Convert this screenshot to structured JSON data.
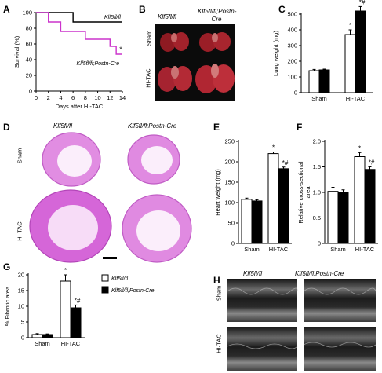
{
  "panels": {
    "A": "A",
    "B": "B",
    "C": "C",
    "D": "D",
    "E": "E",
    "F": "F",
    "G": "G",
    "H": "H"
  },
  "groups": {
    "ctrl": "Klf5fl/fl",
    "ko": "Klf5fl/fl;Postn-Cre",
    "sham": "Sham",
    "tac": "HI-TAC"
  },
  "marks": {
    "star": "*",
    "star_hash": "*#"
  },
  "colors": {
    "ctrl_fill": "#ffffff",
    "ko_fill": "#000000",
    "ctrl_line": "#000000",
    "ko_line": "#cc33cc",
    "heart_pink": "#d566d8",
    "lung_red": "#b3202a"
  },
  "chart_data": [
    {
      "panel": "A",
      "type": "line",
      "xlabel": "Days after HI-TAC",
      "ylabel": "Survival (%)",
      "xlim": [
        0,
        14
      ],
      "ylim": [
        0,
        100
      ],
      "xticks": [
        "0",
        "2",
        "4",
        "6",
        "8",
        "10",
        "12",
        "14"
      ],
      "yticks": [
        "0",
        "20",
        "40",
        "60",
        "80",
        "100"
      ],
      "series": [
        {
          "name": "Klf5fl/fl",
          "x": [
            0,
            6,
            6,
            14
          ],
          "y": [
            100,
            100,
            88,
            88
          ]
        },
        {
          "name": "Klf5fl/fl;Postn-Cre",
          "x": [
            0,
            2,
            2,
            4,
            4,
            8,
            8,
            12,
            12,
            13,
            13,
            14
          ],
          "y": [
            100,
            100,
            88,
            88,
            76,
            76,
            66,
            66,
            57,
            57,
            47,
            47
          ]
        }
      ],
      "annotation": "*"
    },
    {
      "panel": "C",
      "type": "bar",
      "categories": [
        "Sham",
        "HI-TAC"
      ],
      "ylabel": "Lung weight (mg)",
      "ylim": [
        0,
        500
      ],
      "yticks": [
        "0",
        "100",
        "200",
        "300",
        "400",
        "500"
      ],
      "series": [
        {
          "name": "Klf5fl/fl",
          "values": [
            140,
            370
          ],
          "errors": [
            8,
            30
          ]
        },
        {
          "name": "Klf5fl/fl;Postn-Cre",
          "values": [
            145,
            520
          ],
          "errors": [
            5,
            28
          ]
        }
      ],
      "annotations": [
        "*",
        "*#"
      ]
    },
    {
      "panel": "E",
      "type": "bar",
      "categories": [
        "Sham",
        "HI-TAC"
      ],
      "ylabel": "Heart weight (mg)",
      "ylim": [
        0,
        250
      ],
      "yticks": [
        "0",
        "50",
        "100",
        "150",
        "200",
        "250"
      ],
      "series": [
        {
          "name": "Klf5fl/fl",
          "values": [
            108,
            220
          ],
          "errors": [
            3,
            4
          ]
        },
        {
          "name": "Klf5fl/fl;Postn-Cre",
          "values": [
            104,
            183
          ],
          "errors": [
            3,
            4
          ]
        }
      ],
      "annotations": [
        "*",
        "*#"
      ]
    },
    {
      "panel": "F",
      "type": "bar",
      "categories": [
        "Sham",
        "HI-TAC"
      ],
      "ylabel": "Relative cross-sectional area",
      "ylim": [
        0,
        2
      ],
      "yticks": [
        "0",
        "0.5",
        "1.0",
        "1.5",
        "2.0"
      ],
      "series": [
        {
          "name": "Klf5fl/fl",
          "values": [
            1.02,
            1.7
          ],
          "errors": [
            0.08,
            0.08
          ]
        },
        {
          "name": "Klf5fl/fl;Postn-Cre",
          "values": [
            1.0,
            1.45
          ],
          "errors": [
            0.05,
            0.05
          ]
        }
      ],
      "annotations": [
        "*",
        "*#"
      ]
    },
    {
      "panel": "G",
      "type": "bar",
      "categories": [
        "Sham",
        "HI-TAC"
      ],
      "ylabel": "% Fibrotic area",
      "ylim": [
        0,
        20
      ],
      "yticks": [
        "0",
        "5",
        "10",
        "15",
        "20"
      ],
      "series": [
        {
          "name": "Klf5fl/fl",
          "values": [
            1.0,
            18.0
          ],
          "errors": [
            0.3,
            2.0
          ]
        },
        {
          "name": "Klf5fl/fl;Postn-Cre",
          "values": [
            1.0,
            9.5
          ],
          "errors": [
            0.2,
            0.9
          ]
        }
      ],
      "annotations": [
        "*",
        "*#"
      ]
    }
  ]
}
